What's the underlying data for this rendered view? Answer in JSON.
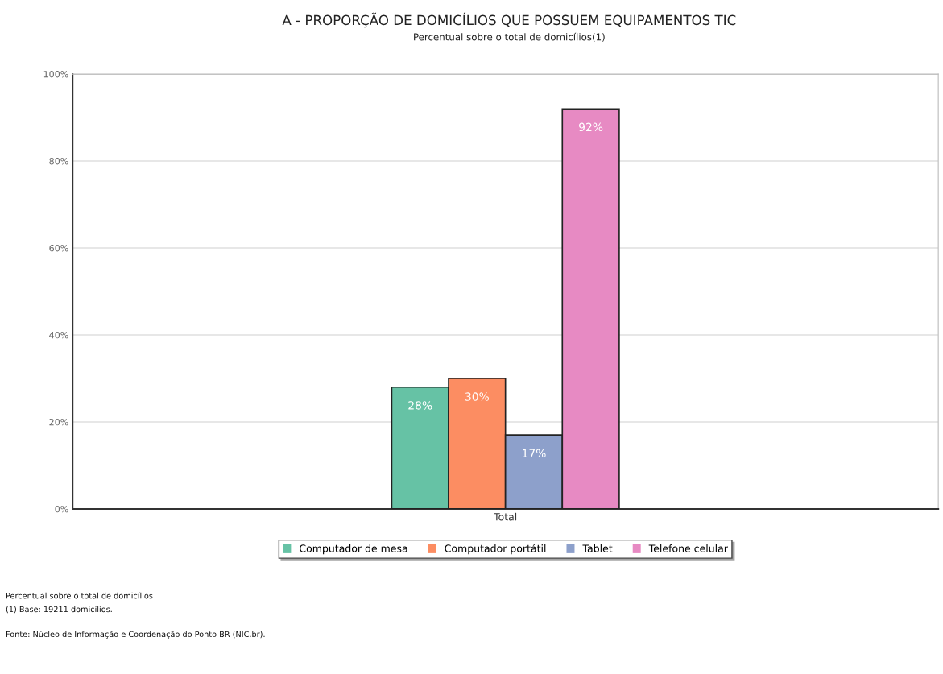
{
  "chart_data": {
    "type": "bar",
    "title": "A - PROPORÇÃO DE DOMICÍLIOS QUE POSSUEM EQUIPAMENTOS TIC",
    "subtitle": "Percentual sobre o total de domicílios(1)",
    "categories": [
      "Total"
    ],
    "series": [
      {
        "name": "Computador de mesa",
        "color": "#66c2a5",
        "values": [
          28
        ]
      },
      {
        "name": "Computador portátil",
        "color": "#fc8d62",
        "values": [
          30
        ]
      },
      {
        "name": "Tablet",
        "color": "#8da0cb",
        "values": [
          17
        ]
      },
      {
        "name": "Telefone celular",
        "color": "#e78ac3",
        "values": [
          92
        ]
      }
    ],
    "ylim": [
      0,
      100
    ],
    "yticks": [
      {
        "value": 0,
        "label": "0%"
      },
      {
        "value": 20,
        "label": "20%"
      },
      {
        "value": 40,
        "label": "40%"
      },
      {
        "value": 60,
        "label": "60%"
      },
      {
        "value": 80,
        "label": "80%"
      },
      {
        "value": 100,
        "label": "100%"
      }
    ],
    "grid": "y",
    "legend": "bottom",
    "value_labels": [
      [
        "28%"
      ],
      [
        "30%"
      ],
      [
        "17%"
      ],
      [
        "92%"
      ]
    ],
    "annotations": [
      "Percentual sobre o total de domicílios",
      "(1) Base: 19211 domicílios.",
      "Fonte: Núcleo de Informação e Coordenação do Ponto BR (NIC.br)."
    ]
  }
}
